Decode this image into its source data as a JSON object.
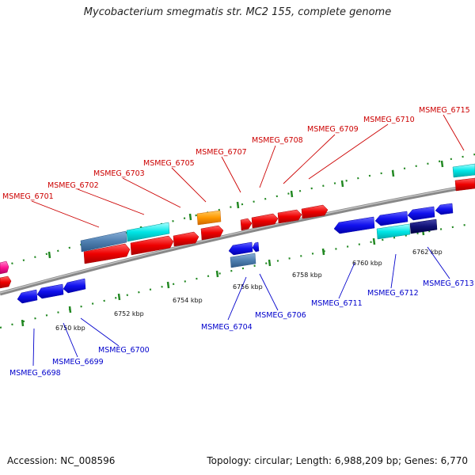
{
  "title": "Mycobacterium smegmatis str. MC2 155, complete genome",
  "accession": "Accession: NC_008596",
  "topology": "Topology: circular; Length: 6,988,209 bp; Genes: 6,770",
  "colors": {
    "forward_label": "#cc0000",
    "reverse_label": "#0000cc",
    "dots": "#228822",
    "backbone": "#888888"
  },
  "scale_labels": [
    "6750 kbp",
    "6752 kbp",
    "6754 kbp",
    "6756 kbp",
    "6758 kbp",
    "6760 kbp",
    "6762 kbp"
  ],
  "forward_labels": [
    "MSMEG_6701",
    "MSMEG_6702",
    "MSMEG_6703",
    "MSMEG_6705",
    "MSMEG_6707",
    "MSMEG_6708",
    "MSMEG_6709",
    "MSMEG_6710",
    "MSMEG_6715"
  ],
  "reverse_labels": [
    "MSMEG_6698",
    "MSMEG_6699",
    "MSMEG_6700",
    "MSMEG_6704",
    "MSMEG_6706",
    "MSMEG_6711",
    "MSMEG_6712",
    "MSMEG_6713"
  ]
}
